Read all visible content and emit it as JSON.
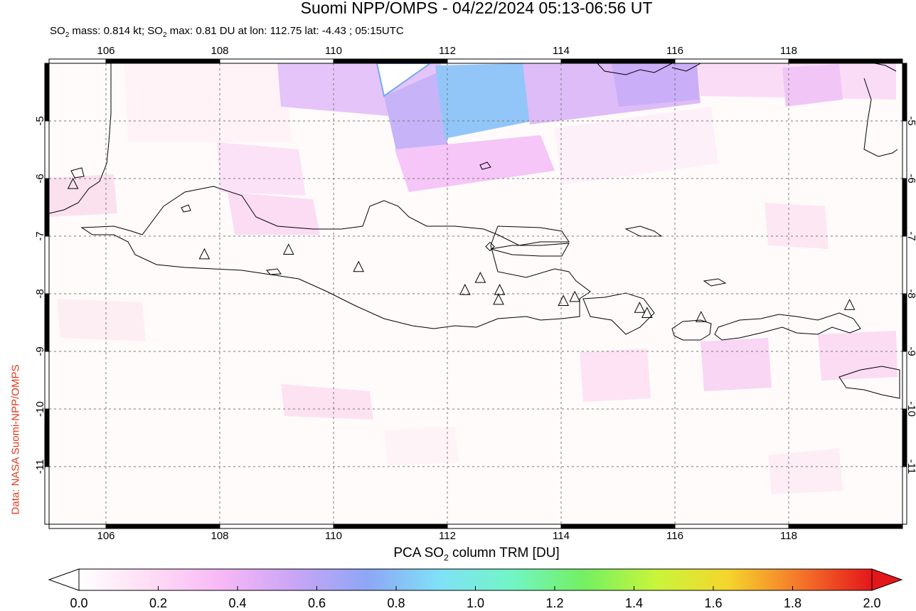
{
  "title": "Suomi NPP/OMPS - 04/22/2024 05:13-06:56 UT",
  "subtitle": {
    "p1": "SO",
    "sub": "2",
    "p2": " mass: 0.814 kt; SO",
    "sub2": "2",
    "p3": " max: 0.81 DU at lon: 112.75 lat: -4.43 ; 05:15UTC"
  },
  "side_credit": "Data: NASA Suomi-NPP/OMPS",
  "colorbar": {
    "label_p1": "PCA SO",
    "label_sub": "2",
    "label_p2": " column TRM [DU]",
    "ticks": [
      "0.0",
      "0.2",
      "0.4",
      "0.6",
      "0.8",
      "1.0",
      "1.2",
      "1.4",
      "1.6",
      "1.8",
      "2.0"
    ],
    "range": [
      0.0,
      2.0
    ],
    "colors": [
      "#ffffff",
      "#ffdcf5",
      "#f6b7f6",
      "#c9a5f6",
      "#8ea6f6",
      "#7fe1f7",
      "#72f5c6",
      "#73f062",
      "#c8f53a",
      "#f5d62c",
      "#f5762a",
      "#e4161a"
    ]
  },
  "map": {
    "lon_ticks": [
      "106",
      "108",
      "110",
      "112",
      "114",
      "116",
      "118"
    ],
    "lat_ticks": [
      "-5",
      "-6",
      "-7",
      "-8",
      "-9",
      "-10",
      "-11"
    ],
    "lon_range": [
      105.0,
      120.0
    ],
    "lat_range": [
      -12.0,
      -4.0
    ],
    "grid": "dashed",
    "volcano_marker": "triangle",
    "volcanoes": [
      [
        105.42,
        -6.1
      ],
      [
        107.73,
        -7.32
      ],
      [
        109.21,
        -7.24
      ],
      [
        110.44,
        -7.54
      ],
      [
        112.31,
        -7.94
      ],
      [
        112.58,
        -7.73
      ],
      [
        112.92,
        -7.94
      ],
      [
        112.9,
        -8.11
      ],
      [
        114.04,
        -8.13
      ],
      [
        114.24,
        -8.06
      ],
      [
        115.38,
        -8.25
      ],
      [
        115.51,
        -8.34
      ],
      [
        116.46,
        -8.41
      ],
      [
        119.07,
        -8.2
      ]
    ],
    "max_marker": [
      112.75,
      -4.43
    ],
    "colors": {
      "coast": "#000000",
      "grid": "#777777",
      "frame": "#000000"
    }
  }
}
